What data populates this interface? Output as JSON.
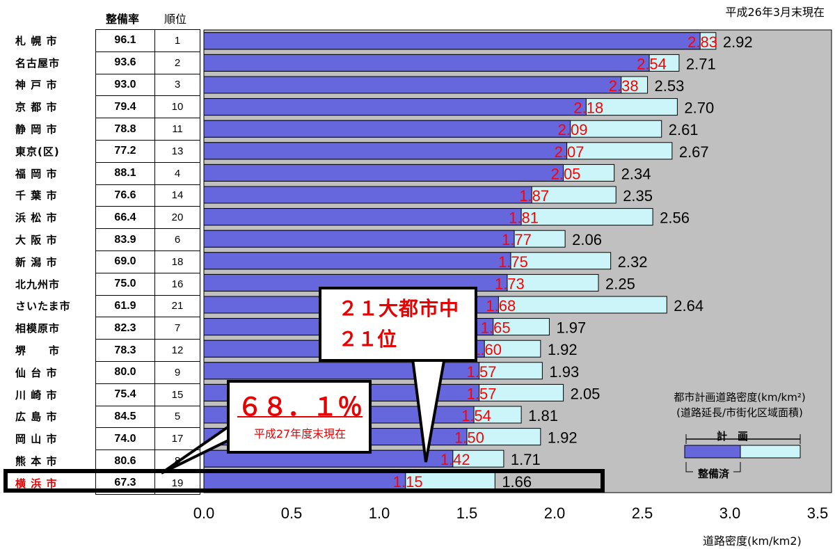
{
  "header": {
    "as_of": "平成26年3月末現在",
    "col_rate": "整備率",
    "col_rank": "順位"
  },
  "rows": [
    {
      "city": "札 幌 市",
      "rate": "96.1",
      "rank": "1"
    },
    {
      "city": "名古屋市",
      "rate": "93.6",
      "rank": "2"
    },
    {
      "city": "神 戸 市",
      "rate": "93.0",
      "rank": "3"
    },
    {
      "city": "京 都 市",
      "rate": "79.4",
      "rank": "10"
    },
    {
      "city": "静 岡 市",
      "rate": "78.8",
      "rank": "11"
    },
    {
      "city": "東京(区)",
      "rate": "77.2",
      "rank": "13"
    },
    {
      "city": "福 岡 市",
      "rate": "88.1",
      "rank": "4"
    },
    {
      "city": "千 葉 市",
      "rate": "76.6",
      "rank": "14"
    },
    {
      "city": "浜 松 市",
      "rate": "66.4",
      "rank": "20"
    },
    {
      "city": "大 阪 市",
      "rate": "83.9",
      "rank": "6"
    },
    {
      "city": "新 潟 市",
      "rate": "69.0",
      "rank": "18"
    },
    {
      "city": "北九州市",
      "rate": "75.0",
      "rank": "16"
    },
    {
      "city": "さいたま市",
      "rate": "61.9",
      "rank": "21"
    },
    {
      "city": "相模原市",
      "rate": "82.3",
      "rank": "7"
    },
    {
      "city": "堺　　市",
      "rate": "78.3",
      "rank": "12"
    },
    {
      "city": "仙 台 市",
      "rate": "80.0",
      "rank": "9"
    },
    {
      "city": "川 崎 市",
      "rate": "75.4",
      "rank": "15"
    },
    {
      "city": "広 島 市",
      "rate": "84.5",
      "rank": "5"
    },
    {
      "city": "岡 山 市",
      "rate": "74.0",
      "rank": "17"
    },
    {
      "city": "熊 本 市",
      "rate": "80.6",
      "rank": "8"
    },
    {
      "city": "横 浜 市",
      "rate": "67.3",
      "rank": "19"
    }
  ],
  "legend": {
    "title_line1": "都市計画道路密度(km/km²)",
    "title_line2": "(道路延長/市街化区域面積)",
    "plan_label": "計　画",
    "done_label": "整備済"
  },
  "callout_rank": {
    "line1": "２１大都市中",
    "line2": "２１位"
  },
  "callout_rate": {
    "line1": "６８．１％",
    "line2": "平成27年度末現在"
  },
  "colors": {
    "built": "#6666dd",
    "planned": "#ccf5fa",
    "plot_bg": "#c0c0c0",
    "highlight_text": "#e60000"
  },
  "chart_data": {
    "type": "bar",
    "orientation": "horizontal",
    "categories": [
      "札 幌 市",
      "名古屋市",
      "神 戸 市",
      "京 都 市",
      "静 岡 市",
      "東京(区)",
      "福 岡 市",
      "千 葉 市",
      "浜 松 市",
      "大 阪 市",
      "新 潟 市",
      "北九州市",
      "さいたま市",
      "相模原市",
      "堺　　市",
      "仙 台 市",
      "川 崎 市",
      "広 島 市",
      "岡 山 市",
      "熊 本 市",
      "横 浜 市"
    ],
    "series": [
      {
        "name": "整備済",
        "values": [
          2.83,
          2.54,
          2.38,
          2.18,
          2.09,
          2.07,
          2.05,
          1.87,
          1.81,
          1.77,
          1.75,
          1.73,
          1.68,
          1.65,
          1.6,
          1.57,
          1.57,
          1.54,
          1.5,
          1.42,
          1.15
        ]
      },
      {
        "name": "計画",
        "values": [
          2.92,
          2.71,
          2.53,
          2.7,
          2.61,
          2.67,
          2.34,
          2.35,
          2.56,
          2.06,
          2.32,
          2.25,
          2.64,
          1.97,
          1.92,
          1.93,
          2.05,
          1.81,
          1.92,
          1.71,
          1.66
        ]
      }
    ],
    "done_labels": [
      "2.83",
      "2.54",
      "2.38",
      "2.18",
      "2.09",
      "2.07",
      "2.05",
      "1.87",
      "1.81",
      "1.77",
      "1.75",
      "1.73",
      "1.68",
      "1.65",
      "1.60",
      "1.57",
      "1.57",
      "1.54",
      "1.50",
      "1.42",
      "1.15"
    ],
    "plan_labels": [
      "2.92",
      "2.71",
      "2.53",
      "2.70",
      "2.61",
      "2.67",
      "2.34",
      "2.35",
      "2.56",
      "2.06",
      "2.32",
      "2.25",
      "2.64",
      "1.97",
      "1.92",
      "1.93",
      "2.05",
      "1.81",
      "1.92",
      "1.71",
      "1.66"
    ],
    "xticks": [
      "0.0",
      "0.5",
      "1.0",
      "1.5",
      "2.0",
      "2.5",
      "3.0",
      "3.5"
    ],
    "xlim": [
      0,
      3.5
    ],
    "xlabel": "道路密度(km/km2)",
    "highlight": "横 浜 市"
  }
}
